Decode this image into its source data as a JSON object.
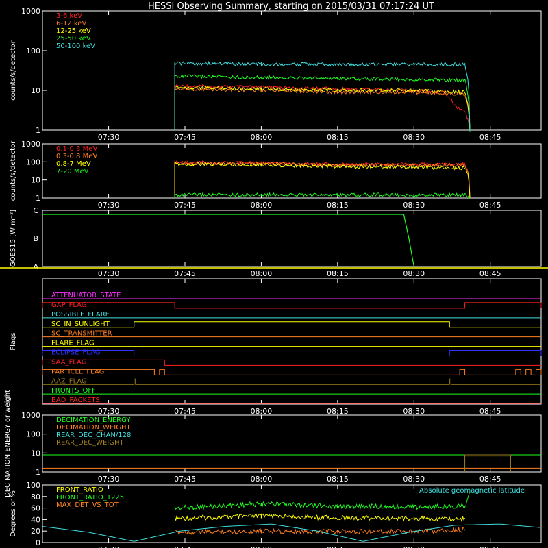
{
  "title": "HESSI Observing Summary, starting on 2015/03/31 07:17:24 UT",
  "colors": {
    "background": "#000000",
    "axes": "#ffffff",
    "red": "#ff2020",
    "orange": "#ff8020",
    "yellow": "#ffff00",
    "green": "#20ff20",
    "cyan": "#40e0e0",
    "magenta": "#ff30ff",
    "blue": "#3030ff",
    "olive": "#a08020"
  },
  "time_ticks": [
    "07:30",
    "07:45",
    "08:00",
    "08:15",
    "08:30",
    "08:45"
  ],
  "chart_data": [
    {
      "type": "line",
      "panel": "counts-low",
      "ylabel": "counts/s/detector",
      "yscale": "log",
      "ylim": [
        1,
        1000
      ],
      "y_ticks": [
        "1",
        "10",
        "100",
        "1000"
      ],
      "legend_position": "top-left",
      "series": [
        {
          "name": "3-6 keV",
          "color": "#ff2020",
          "x": [
            "07:43",
            "08:00",
            "08:15",
            "08:30",
            "08:36",
            "08:38",
            "08:40",
            "08:41"
          ],
          "values": [
            13,
            12,
            11,
            10,
            9,
            4,
            3,
            1
          ]
        },
        {
          "name": "6-12 keV",
          "color": "#ff8020",
          "x": [
            "07:43",
            "08:00",
            "08:15",
            "08:30",
            "08:40",
            "08:41"
          ],
          "values": [
            11,
            10,
            9,
            9,
            8,
            1
          ]
        },
        {
          "name": "12-25 keV",
          "color": "#ffff00",
          "x": [
            "07:43",
            "08:00",
            "08:15",
            "08:30",
            "08:40",
            "08:41"
          ],
          "values": [
            12,
            11,
            10,
            10,
            9,
            1
          ]
        },
        {
          "name": "25-50 keV",
          "color": "#20ff20",
          "x": [
            "07:43",
            "08:00",
            "08:15",
            "08:30",
            "08:40",
            "08:41"
          ],
          "values": [
            23,
            21,
            20,
            19,
            18,
            1
          ]
        },
        {
          "name": "50-100 keV",
          "color": "#40e0e0",
          "x": [
            "07:43",
            "08:00",
            "08:15",
            "08:30",
            "08:40",
            "08:41"
          ],
          "values": [
            48,
            46,
            45,
            45,
            45,
            1
          ]
        }
      ]
    },
    {
      "type": "line",
      "panel": "counts-high",
      "ylabel": "counts/s/detector",
      "yscale": "log",
      "ylim": [
        1,
        1000
      ],
      "y_ticks": [
        "1",
        "10",
        "100",
        "1000"
      ],
      "legend_position": "top-left",
      "series": [
        {
          "name": "0.1-0.3 MeV",
          "color": "#ff2020",
          "x": [
            "07:43",
            "08:00",
            "08:15",
            "08:30",
            "08:40",
            "08:41"
          ],
          "values": [
            95,
            85,
            72,
            75,
            75,
            1
          ]
        },
        {
          "name": "0.3-0.8 MeV",
          "color": "#ff8020",
          "x": [
            "07:43",
            "08:00",
            "08:15",
            "08:30",
            "08:40",
            "08:41"
          ],
          "values": [
            85,
            78,
            65,
            66,
            66,
            1
          ]
        },
        {
          "name": "0.8-7 MeV",
          "color": "#ffff00",
          "x": [
            "07:43",
            "08:00",
            "08:15",
            "08:30",
            "08:40",
            "08:41"
          ],
          "values": [
            75,
            68,
            55,
            50,
            45,
            1
          ]
        },
        {
          "name": "7-20 MeV",
          "color": "#20ff20",
          "x": [
            "07:43",
            "08:00",
            "08:15",
            "08:30",
            "08:40",
            "08:41"
          ],
          "values": [
            1.5,
            1.5,
            1.5,
            1.5,
            1.5,
            1
          ]
        }
      ]
    },
    {
      "type": "line",
      "panel": "goes",
      "ylabel": "GOES15 [W m⁻²]",
      "y_ticks": [
        "A",
        "B",
        "C"
      ],
      "series": [
        {
          "name": "",
          "color": "#20ff20",
          "x": [
            "07:17",
            "07:45",
            "08:00",
            "08:15",
            "08:25",
            "08:28",
            "08:29",
            "08:30"
          ],
          "values": [
            "C",
            "C",
            "C",
            "C",
            "C",
            "C",
            "B",
            "A"
          ]
        }
      ]
    },
    {
      "type": "line",
      "panel": "flags",
      "ylabel": "Flags",
      "series": [
        {
          "name": "ATTENUATOR_STATE",
          "color": "#ff30ff",
          "on": []
        },
        {
          "name": "GAP_FLAG",
          "color": "#ff2020",
          "on": [
            [
              "07:17",
              "07:43"
            ],
            [
              "08:40",
              "08:55"
            ]
          ]
        },
        {
          "name": "POSSIBLE_FLARE",
          "color": "#40e0e0",
          "on": []
        },
        {
          "name": "SC_IN_SUNLIGHT",
          "color": "#ffff00",
          "on": [
            [
              "07:35",
              "08:37"
            ]
          ]
        },
        {
          "name": "SC_TRANSMITTER",
          "color": "#ff8020",
          "on": []
        },
        {
          "name": "FLARE_FLAG",
          "color": "#ffff00",
          "on": []
        },
        {
          "name": "ECLIPSE_FLAG",
          "color": "#3030ff",
          "on": [
            [
              "07:17",
              "07:35"
            ],
            [
              "08:37",
              "08:55"
            ]
          ]
        },
        {
          "name": "SAA_FLAG",
          "color": "#ff2020",
          "on": [
            [
              "07:17",
              "07:41"
            ]
          ]
        },
        {
          "name": "PARTICLE_FLAG",
          "color": "#ff8020",
          "on": [
            [
              "07:17",
              "07:39"
            ],
            [
              "07:40",
              "07:41"
            ],
            [
              "08:39",
              "08:40"
            ],
            [
              "08:50",
              "08:51"
            ],
            [
              "08:52",
              "08:53"
            ],
            [
              "08:54",
              "08:55"
            ]
          ]
        },
        {
          "name": "AAZ_FLAG",
          "color": "#a08020",
          "on": [
            [
              "07:35",
              "07:35"
            ],
            [
              "08:37",
              "08:37"
            ]
          ]
        },
        {
          "name": "FRONTS_OFF",
          "color": "#20ff20",
          "on": []
        },
        {
          "name": "BAD_PACKETS",
          "color": "#ff2020",
          "on": []
        }
      ]
    },
    {
      "type": "line",
      "panel": "decimation",
      "ylabel": "DECIMATION ENERGY or weight",
      "yscale": "log",
      "ylim": [
        1,
        1000
      ],
      "y_ticks": [
        "1",
        "10",
        "100",
        "1000"
      ],
      "legend_position": "top-left",
      "series": [
        {
          "name": "DECIMATION_ENERGY",
          "color": "#20ff20",
          "x": [
            "07:17",
            "08:40",
            "08:40",
            "08:55"
          ],
          "values": [
            8,
            8,
            8,
            8
          ]
        },
        {
          "name": "DECIMATION_WEIGHT",
          "color": "#ff8020",
          "x": [
            "07:17",
            "08:55"
          ],
          "values": [
            1.6,
            1.6
          ]
        },
        {
          "name": "REAR_DEC_CHAN/128",
          "color": "#40e0e0",
          "x": [],
          "values": []
        },
        {
          "name": "REAR_DEC_WEIGHT",
          "color": "#a08020",
          "x": [
            "08:40",
            "08:49"
          ],
          "values": [
            7,
            7
          ]
        }
      ]
    },
    {
      "type": "line",
      "panel": "ratios",
      "ylabel": "Degrees or %",
      "ylim": [
        0,
        100
      ],
      "y_ticks": [
        "0",
        "20",
        "40",
        "60",
        "80",
        "100"
      ],
      "legend_position": "top-left",
      "annotation": "Absolute geomagnetic latitude",
      "series": [
        {
          "name": "FRONT_RATIO",
          "color": "#ffff00",
          "x": [
            "07:43",
            "08:00",
            "08:15",
            "08:30",
            "08:40"
          ],
          "values": [
            42,
            46,
            43,
            42,
            41
          ]
        },
        {
          "name": "FRONT_RATIO_1225",
          "color": "#20ff20",
          "x": [
            "07:43",
            "08:00",
            "08:15",
            "08:30",
            "08:40",
            "08:41"
          ],
          "values": [
            60,
            67,
            63,
            62,
            63,
            85
          ]
        },
        {
          "name": "MAX_DET_VS_TOT",
          "color": "#ff8020",
          "x": [
            "07:43",
            "08:00",
            "08:15",
            "08:30",
            "08:40"
          ],
          "values": [
            18,
            20,
            19,
            19,
            22
          ]
        },
        {
          "name": "Absolute geomagnetic latitude",
          "color": "#40e0e0",
          "x": [
            "07:17",
            "07:26",
            "07:35",
            "07:44",
            "07:53",
            "08:02",
            "08:11",
            "08:20",
            "08:29",
            "08:38",
            "08:47",
            "08:55"
          ],
          "values": [
            28,
            18,
            2,
            20,
            28,
            32,
            20,
            2,
            18,
            30,
            32,
            26
          ]
        }
      ]
    }
  ]
}
